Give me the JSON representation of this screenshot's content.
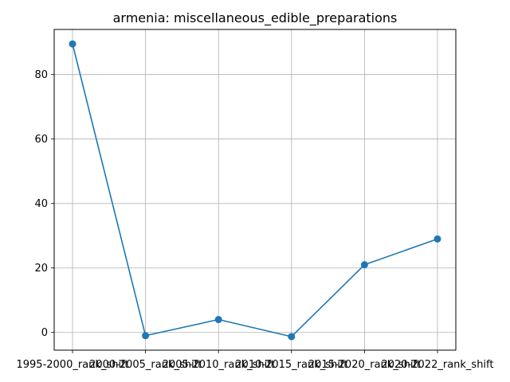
{
  "chart_data": {
    "type": "line",
    "title": "armenia: miscellaneous_edible_preparations",
    "xlabel": "",
    "ylabel": "",
    "categories": [
      "1995-2000_rank_shift",
      "2000-2005_rank_shift",
      "2005-2010_rank_shift",
      "2010-2015_rank_shift",
      "2015-2020_rank_shift",
      "2020-2022_rank_shift"
    ],
    "series": [
      {
        "values": [
          89.5,
          -1.0,
          4.0,
          -1.3,
          21.0,
          29.0
        ]
      }
    ],
    "ylim": [
      -5.5,
      94.0
    ],
    "yticks": [
      0,
      20,
      40,
      60,
      80
    ],
    "grid": true,
    "line_color": "#1f77b4",
    "marker": "circle"
  }
}
